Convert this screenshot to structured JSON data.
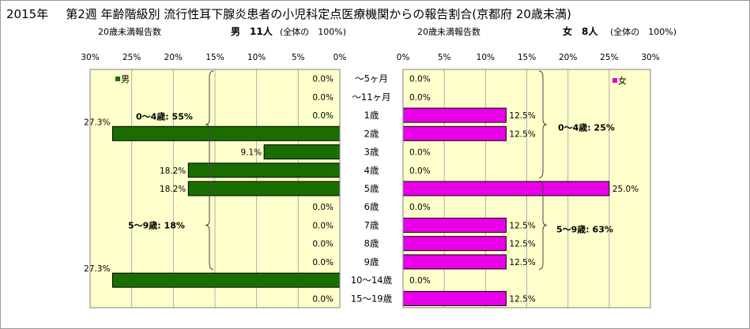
{
  "title": {
    "year": "2015年",
    "main": "第2週 年齢階級別 流行性耳下腺炎患者の小児科定点医療機関からの報告割合(京都府 20歳未満)"
  },
  "left_header": {
    "label": "20歳未満報告数",
    "count": "男　11人",
    "share": "(全体の　100%)"
  },
  "right_header": {
    "label": "20歳未満報告数",
    "count": "女　8人",
    "share": "(全体の　100%)"
  },
  "colors": {
    "male": "#1a6e00",
    "female": "#e800e8",
    "plot_bg": "#ffffcc"
  },
  "chart_data": [
    {
      "type": "bar",
      "orientation": "horizontal",
      "direction": "reversed",
      "series": [
        {
          "name": "男",
          "values": [
            0.0,
            0.0,
            0.0,
            27.3,
            9.1,
            18.2,
            18.2,
            0.0,
            0.0,
            0.0,
            0.0,
            27.3,
            0.0
          ]
        }
      ],
      "labels": [
        "0.0%",
        "0.0%",
        "0.0%",
        "27.3%",
        "9.1%",
        "18.2%",
        "18.2%",
        "0.0%",
        "0.0%",
        "0.0%",
        "0.0%",
        "27.3%",
        "0.0%"
      ],
      "xlim": [
        0,
        30
      ],
      "ticks": [
        "30%",
        "25%",
        "20%",
        "15%",
        "10%",
        "5%",
        "0%"
      ],
      "annotations": [
        "0～4歳: 55%",
        "5～9歳: 18%"
      ],
      "legend": "top-left",
      "grid": true
    },
    {
      "type": "bar",
      "orientation": "horizontal",
      "series": [
        {
          "name": "女",
          "values": [
            0.0,
            0.0,
            12.5,
            12.5,
            0.0,
            0.0,
            25.0,
            0.0,
            12.5,
            12.5,
            12.5,
            0.0,
            12.5
          ]
        }
      ],
      "labels": [
        "0.0%",
        "0.0%",
        "12.5%",
        "12.5%",
        "0.0%",
        "0.0%",
        "25.0%",
        "0.0%",
        "12.5%",
        "12.5%",
        "12.5%",
        "0.0%",
        "12.5%"
      ],
      "xlim": [
        0,
        30
      ],
      "ticks": [
        "0%",
        "5%",
        "10%",
        "15%",
        "20%",
        "25%",
        "30%"
      ],
      "annotations": [
        "0～4歳: 25%",
        "5～9歳: 63%"
      ],
      "legend": "top-right",
      "grid": true
    }
  ],
  "categories": [
    "～5ヶ月",
    "～11ヶ月",
    "1歳",
    "2歳",
    "3歳",
    "4歳",
    "5歳",
    "6歳",
    "7歳",
    "8歳",
    "9歳",
    "10～14歳",
    "15～19歳"
  ]
}
